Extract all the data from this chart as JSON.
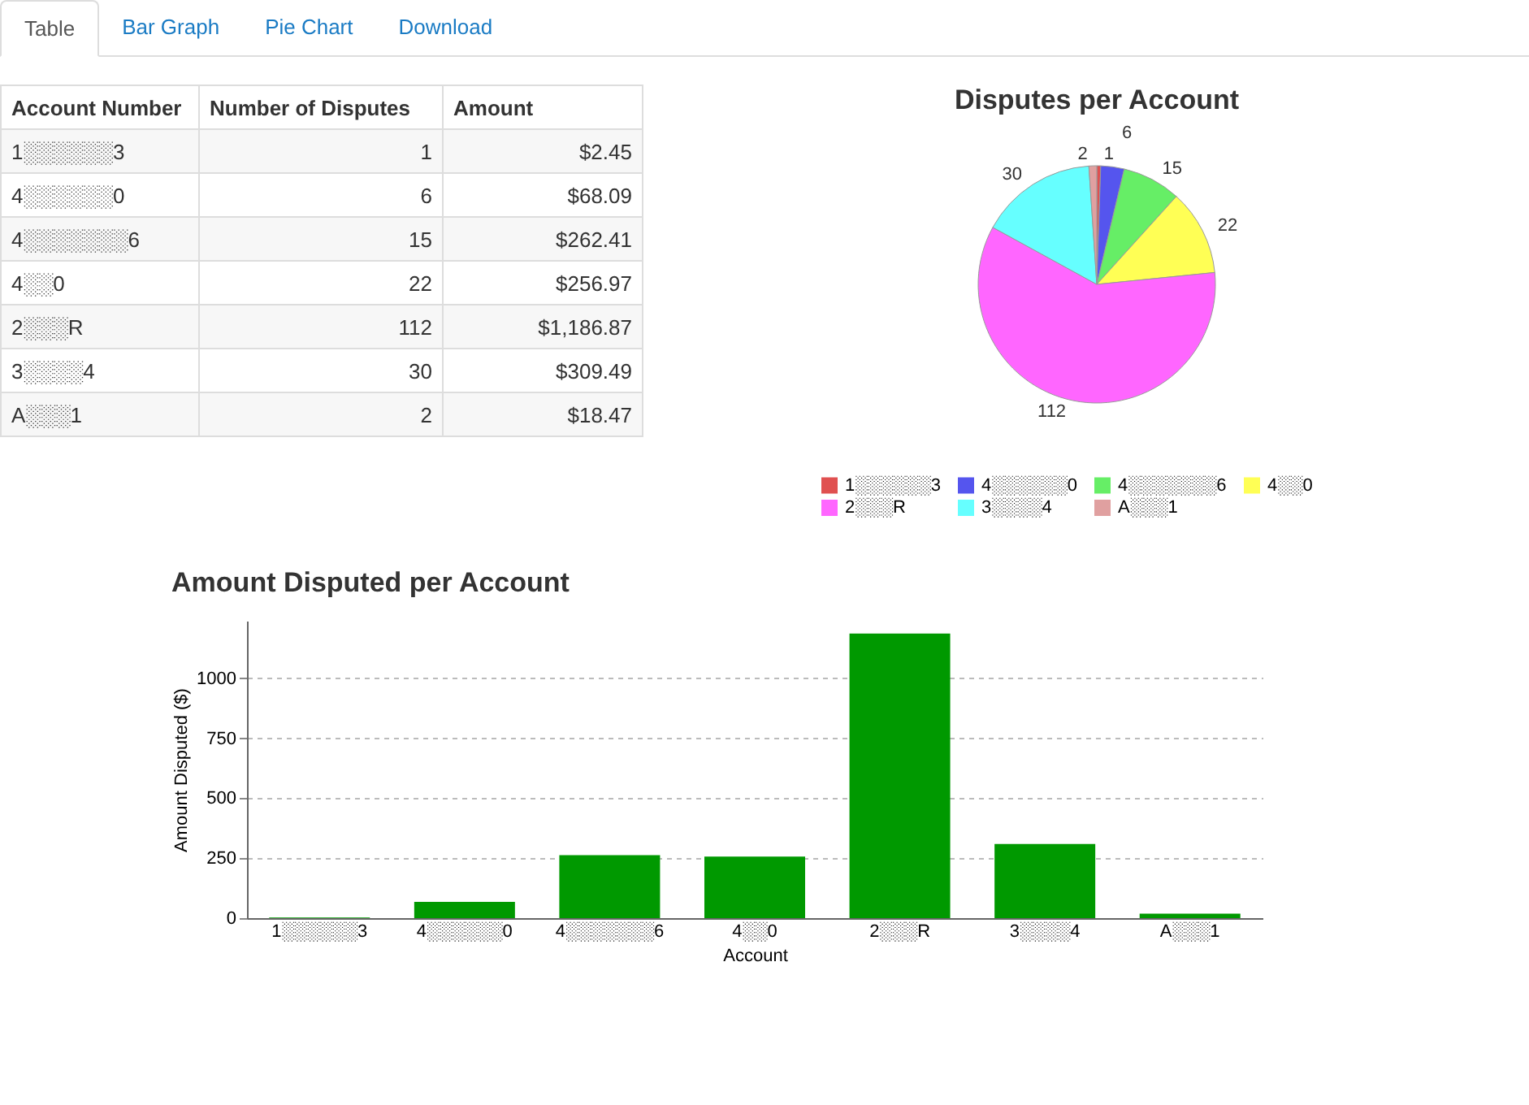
{
  "chart_data": [
    {
      "type": "other",
      "annotations": [
        "Table",
        "Bar Graph",
        "Pie Chart",
        "Download"
      ]
    },
    {
      "type": "other",
      "annotations": [
        "Account Number",
        "Number of Disputes",
        "Amount",
        "1░░░░░░3",
        "1",
        "$2.45",
        "4░░░░░░0",
        "6",
        "$68.09",
        "4░░░░░░░6",
        "15",
        "$262.41",
        "4░░0",
        "22",
        "$256.97",
        "2░░░R",
        "112",
        "$1,186.87",
        "3░░░░4",
        "30",
        "$309.49",
        "A░░░1",
        "2",
        "$18.47"
      ]
    },
    {
      "type": "pie",
      "title": "Disputes per Account",
      "categories": [
        "1░░░░░░3",
        "4░░░░░░0",
        "4░░░░░░░6",
        "4░░0",
        "2░░░R",
        "3░░░░4",
        "A░░░1"
      ],
      "values": [
        1,
        6,
        15,
        22,
        112,
        30,
        2
      ],
      "colors": [
        "#e05050",
        "#5555ee",
        "#66ee66",
        "#ffff55",
        "#ff66ff",
        "#66ffff",
        "#e0a0a0"
      ],
      "data_labels": true,
      "legend": "bottom"
    },
    {
      "type": "bar",
      "title": "Amount Disputed per Account",
      "xlabel": "Account",
      "ylabel": "Amount Disputed ($)",
      "categories": [
        "1░░░░░░3",
        "4░░░░░░0",
        "4░░░░░░░6",
        "4░░0",
        "2░░░R",
        "3░░░░4",
        "A░░░1"
      ],
      "values": [
        2.45,
        68.09,
        262.41,
        256.97,
        1186.87,
        309.49,
        18.47
      ],
      "color": "#009900",
      "ylim": [
        0,
        1240
      ],
      "yticks": [
        0,
        250,
        500,
        750,
        1000
      ],
      "grid": "y",
      "legend": false
    }
  ]
}
